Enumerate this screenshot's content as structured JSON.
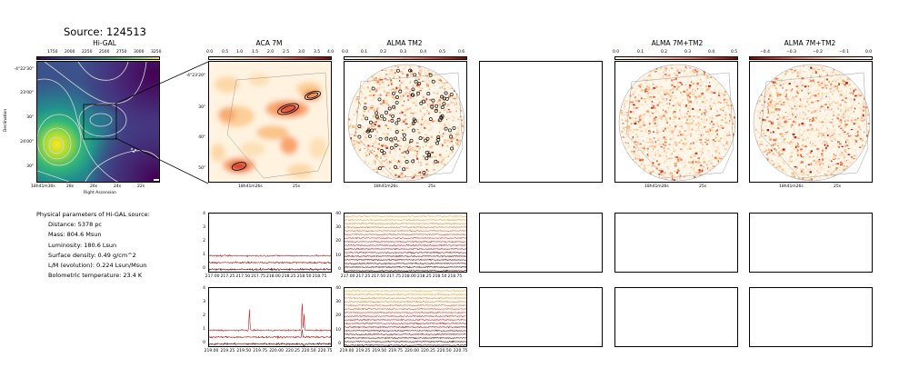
{
  "page": {
    "source_title": "Source: 124513"
  },
  "panels": {
    "higal": {
      "title": "Hi-GAL",
      "cbar_ticks": [
        "1750",
        "2000",
        "2250",
        "2500",
        "2750",
        "3000",
        "3250"
      ],
      "y_ticks": [
        "-4°22'30\"",
        "23'00\"",
        "30\"",
        "24'00\"",
        "30\""
      ],
      "x_ticks": [
        "18h41m30s",
        "28s",
        "26s",
        "24s",
        "22s"
      ],
      "xlabel": "Right Ascension",
      "ylabel": "Declination"
    },
    "aca": {
      "title": "ACA 7M",
      "cbar_ticks": [
        "0.0",
        "0.5",
        "1.0",
        "1.5",
        "2.0",
        "2.5",
        "3.0",
        "3.5",
        "4.0"
      ],
      "y_ticks": [
        "-4°23'20\"",
        "30\"",
        "40\"",
        "50\""
      ],
      "x_ticks": [
        "18h41m26s",
        "25s"
      ]
    },
    "tm2": {
      "title": "ALMA TM2",
      "cbar_ticks": [
        "0.0",
        "0.1",
        "0.2",
        "0.3",
        "0.4",
        "0.5",
        "0.6"
      ],
      "x_ticks": [
        "18h41m26s",
        "25s"
      ]
    },
    "comb1": {
      "title": "ALMA 7M+TM2",
      "cbar_ticks": [
        "0.0",
        "0.1",
        "0.2",
        "0.3",
        "0.4",
        "0.5"
      ],
      "x_ticks": [
        "18h41m26s",
        "25s"
      ]
    },
    "comb2": {
      "title": "ALMA 7M+TM2",
      "cbar_ticks": [
        "−0.4",
        "−0.3",
        "−0.2",
        "−0.1",
        "0.0"
      ],
      "x_ticks": [
        "18h41m26s",
        "25s"
      ]
    }
  },
  "params": {
    "header": "Physical parameters of Hi-GAL source:",
    "lines": [
      "Distance: 5378 pc",
      "Mass: 804.6 Msun",
      "Luminosity: 180.6 Lsun",
      "Surface density: 0.49 g/cm^2",
      "L/M (evolution): 0.224 Lsun/Msun",
      "Bolometric temperature: 23.4 K"
    ]
  },
  "colors": {
    "viridis_low": "#440154",
    "viridis_high": "#fde725",
    "spectrum_dark": "#5a0000",
    "spectrum_mid": "#d62020",
    "spectrum_light": "#f5a623"
  },
  "chart_data": [
    {
      "type": "line",
      "name": "aca-spectrum-1",
      "x_ticks": [
        "217.00",
        "217.25",
        "217.50",
        "217.75",
        "218.00",
        "218.25",
        "218.50",
        "218.75"
      ],
      "y_ticks": [
        "0",
        "1",
        "2",
        "3",
        "4"
      ],
      "xlim": [
        216.93,
        218.95
      ],
      "ylim": [
        -0.3,
        4.1
      ],
      "series": [
        {
          "offset": 0.0,
          "noise": 0.06,
          "color": "#5a0000"
        },
        {
          "offset": 0.5,
          "noise": 0.05,
          "color": "#a01010"
        },
        {
          "offset": 1.0,
          "noise": 0.05,
          "color": "#d62020"
        }
      ]
    },
    {
      "type": "line",
      "name": "tm2-spectrum-1",
      "x_ticks": [
        "217.00",
        "217.25",
        "217.50",
        "217.75",
        "218.00",
        "218.25",
        "218.50",
        "218.75"
      ],
      "y_ticks": [
        "0",
        "10",
        "20",
        "30",
        "40"
      ],
      "xlim": [
        216.93,
        218.95
      ],
      "ylim": [
        -2,
        41
      ],
      "series_count": 16,
      "offsets": [
        0,
        2.6,
        5.2,
        7.8,
        10.4,
        13,
        15.6,
        18.2,
        20.8,
        23.4,
        26,
        28.6,
        31.2,
        33.8,
        36.4,
        39
      ]
    },
    {
      "type": "line",
      "name": "aca-spectrum-2",
      "x_ticks": [
        "219.00",
        "219.25",
        "219.50",
        "219.75",
        "220.00",
        "220.25",
        "220.50",
        "220.75"
      ],
      "y_ticks": [
        "0",
        "1",
        "2",
        "3",
        "4"
      ],
      "xlim": [
        218.95,
        220.85
      ],
      "ylim": [
        -0.3,
        4.1
      ],
      "series": [
        {
          "offset": 0.0,
          "noise": 0.06,
          "color": "#5a0000",
          "peaks": [
            [
              220.41,
              -0.3
            ]
          ]
        },
        {
          "offset": 0.5,
          "noise": 0.05,
          "color": "#a01010",
          "peaks": [
            [
              220.38,
              0.6
            ]
          ]
        },
        {
          "offset": 1.0,
          "noise": 0.05,
          "color": "#d62020",
          "peaks": [
            [
              219.57,
              1.6
            ],
            [
              220.38,
              2.1
            ],
            [
              220.41,
              1.2
            ]
          ]
        }
      ]
    },
    {
      "type": "line",
      "name": "tm2-spectrum-2",
      "x_ticks": [
        "219.00",
        "219.25",
        "219.50",
        "219.75",
        "220.00",
        "220.25",
        "220.50",
        "220.75"
      ],
      "y_ticks": [
        "0",
        "10",
        "20",
        "30",
        "40"
      ],
      "xlim": [
        218.95,
        220.85
      ],
      "ylim": [
        -2,
        41
      ],
      "series_count": 16,
      "offsets": [
        0,
        2.6,
        5.2,
        7.8,
        10.4,
        13,
        15.6,
        18.2,
        20.8,
        23.4,
        26,
        28.6,
        31.2,
        33.8,
        36.4,
        39
      ]
    }
  ]
}
